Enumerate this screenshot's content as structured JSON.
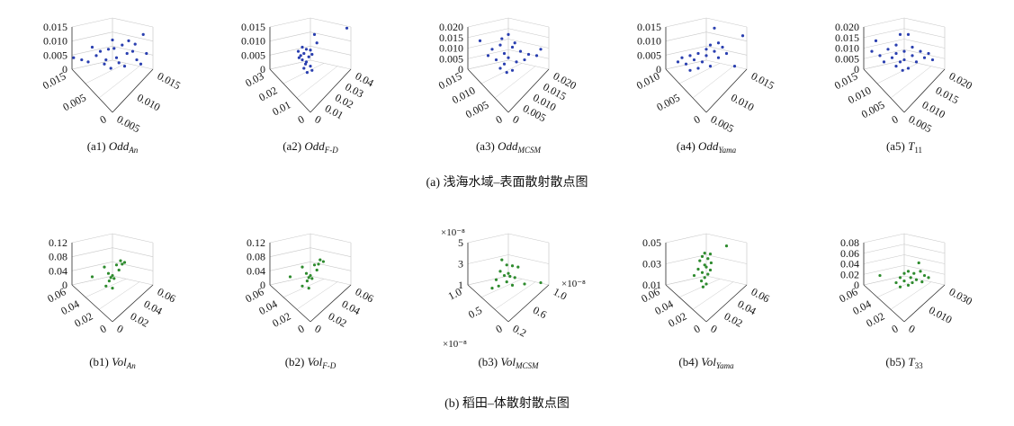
{
  "groups": [
    {
      "caption": "(a) 浅海水域–表面散射散点图",
      "color": "#2a3fb0",
      "panels": [
        {
          "prefix": "(a1) ",
          "base": "Odd",
          "sub": "An",
          "z_ticks": [
            "0.015",
            "0.010",
            "0.005",
            "0"
          ],
          "left_ticks": [
            "0.015",
            "0.005",
            "0"
          ],
          "right_ticks": [
            "0.015",
            "0.010",
            "0.005"
          ],
          "points": [
            [
              0.5,
              0.82
            ],
            [
              0.88,
              0.95
            ],
            [
              0.62,
              0.7
            ],
            [
              0.45,
              0.6
            ],
            [
              0.75,
              0.55
            ],
            [
              0.3,
              0.45
            ],
            [
              0.55,
              0.4
            ],
            [
              0.8,
              0.35
            ],
            [
              0.4,
              0.25
            ],
            [
              0.65,
              0.2
            ],
            [
              0.2,
              0.3
            ],
            [
              0.92,
              0.5
            ],
            [
              0.12,
              0.35
            ],
            [
              0.7,
              0.8
            ],
            [
              0.35,
              0.55
            ],
            [
              0.58,
              0.28
            ],
            [
              0.48,
              0.15
            ],
            [
              0.85,
              0.25
            ],
            [
              0.25,
              0.65
            ],
            [
              0.68,
              0.5
            ],
            [
              0.02,
              0.4
            ],
            [
              0.52,
              0.62
            ],
            [
              0.42,
              0.35
            ],
            [
              0.78,
              0.72
            ]
          ]
        },
        {
          "prefix": "(a2) ",
          "base": "Odd",
          "sub": "F-D",
          "z_ticks": [
            "0.015",
            "0.010",
            "0.005",
            "0"
          ],
          "left_ticks": [
            "0.03",
            "0.02",
            "0.01",
            "0"
          ],
          "right_ticks": [
            "0.04",
            "0.03",
            "0.02",
            "0.01",
            "0"
          ],
          "points": [
            [
              0.55,
              0.95
            ],
            [
              0.4,
              0.65
            ],
            [
              0.45,
              0.6
            ],
            [
              0.5,
              0.58
            ],
            [
              0.35,
              0.55
            ],
            [
              0.42,
              0.5
            ],
            [
              0.52,
              0.48
            ],
            [
              0.38,
              0.45
            ],
            [
              0.48,
              0.42
            ],
            [
              0.4,
              0.35
            ],
            [
              0.45,
              0.3
            ],
            [
              0.5,
              0.2
            ],
            [
              0.42,
              0.15
            ],
            [
              0.52,
              0.1
            ],
            [
              0.46,
              0.05
            ],
            [
              0.95,
              1.1
            ],
            [
              0.58,
              0.75
            ],
            [
              0.36,
              0.4
            ],
            [
              0.44,
              0.25
            ]
          ]
        },
        {
          "prefix": "(a3) ",
          "base": "Odd",
          "sub": "MCSM",
          "z_ticks": [
            "0.020",
            "0.015",
            "0.010",
            "0.005",
            "0"
          ],
          "left_ticks": [
            "0.015",
            "0.010",
            "0.005",
            "0"
          ],
          "right_ticks": [
            "0.020",
            "0.015",
            "0.010",
            "0.005",
            "0"
          ],
          "points": [
            [
              0.5,
              0.95
            ],
            [
              0.15,
              0.8
            ],
            [
              0.4,
              0.7
            ],
            [
              0.55,
              0.65
            ],
            [
              0.3,
              0.6
            ],
            [
              0.65,
              0.55
            ],
            [
              0.45,
              0.5
            ],
            [
              0.75,
              0.48
            ],
            [
              0.85,
              0.45
            ],
            [
              0.5,
              0.4
            ],
            [
              0.35,
              0.35
            ],
            [
              0.6,
              0.3
            ],
            [
              0.45,
              0.25
            ],
            [
              0.4,
              0.15
            ],
            [
              0.55,
              0.1
            ],
            [
              0.48,
              0.05
            ],
            [
              0.7,
              0.35
            ],
            [
              0.25,
              0.45
            ],
            [
              0.9,
              0.6
            ],
            [
              0.58,
              0.75
            ],
            [
              0.42,
              0.85
            ]
          ]
        },
        {
          "prefix": "(a4) ",
          "base": "Odd",
          "sub": "Yama",
          "z_ticks": [
            "0.015",
            "0.010",
            "0.005",
            "0"
          ],
          "left_ticks": [
            "0.010",
            "0.005",
            "0"
          ],
          "right_ticks": [
            "0.015",
            "0.010",
            "0.005"
          ],
          "points": [
            [
              0.6,
              1.1
            ],
            [
              0.95,
              0.92
            ],
            [
              0.65,
              0.75
            ],
            [
              0.55,
              0.7
            ],
            [
              0.7,
              0.65
            ],
            [
              0.6,
              0.55
            ],
            [
              0.4,
              0.5
            ],
            [
              0.3,
              0.45
            ],
            [
              0.5,
              0.45
            ],
            [
              0.2,
              0.4
            ],
            [
              0.35,
              0.35
            ],
            [
              0.45,
              0.3
            ],
            [
              0.25,
              0.25
            ],
            [
              0.55,
              0.2
            ],
            [
              0.4,
              0.15
            ],
            [
              0.85,
              0.2
            ],
            [
              0.65,
              0.4
            ],
            [
              0.15,
              0.3
            ],
            [
              0.75,
              0.5
            ],
            [
              0.3,
              0.1
            ],
            [
              0.5,
              0.6
            ]
          ]
        },
        {
          "prefix": "(a5) ",
          "base": "T",
          "sub": "11",
          "plain": true,
          "z_ticks": [
            "0.020",
            "0.015",
            "0.010",
            "0.005",
            "0"
          ],
          "left_ticks": [
            "0.015",
            "0.010",
            "0.005",
            "0"
          ],
          "right_ticks": [
            "0.020",
            "0.015",
            "0.010",
            "0.005"
          ],
          "points": [
            [
              0.45,
              0.95
            ],
            [
              0.55,
              0.95
            ],
            [
              0.15,
              0.8
            ],
            [
              0.4,
              0.7
            ],
            [
              0.6,
              0.65
            ],
            [
              0.3,
              0.6
            ],
            [
              0.7,
              0.55
            ],
            [
              0.5,
              0.55
            ],
            [
              0.4,
              0.5
            ],
            [
              0.8,
              0.5
            ],
            [
              0.2,
              0.45
            ],
            [
              0.6,
              0.45
            ],
            [
              0.35,
              0.4
            ],
            [
              0.5,
              0.35
            ],
            [
              0.45,
              0.3
            ],
            [
              0.25,
              0.3
            ],
            [
              0.65,
              0.3
            ],
            [
              0.4,
              0.2
            ],
            [
              0.55,
              0.15
            ],
            [
              0.75,
              0.4
            ],
            [
              0.1,
              0.55
            ],
            [
              0.85,
              0.35
            ],
            [
              0.48,
              0.1
            ]
          ]
        }
      ]
    },
    {
      "caption": "(b) 稻田–体散射散点图",
      "color": "#2e8b2e",
      "panels": [
        {
          "prefix": "(b1) ",
          "base": "Vol",
          "sub": "An",
          "z_ticks": [
            "0.12",
            "0.08",
            "0.04",
            "0"
          ],
          "left_ticks": [
            "0.06",
            "0.04",
            "0.02",
            "0"
          ],
          "right_ticks": [
            "0.06",
            "0.04",
            "0.02",
            "0"
          ],
          "points": [
            [
              0.6,
              0.7
            ],
            [
              0.65,
              0.66
            ],
            [
              0.62,
              0.62
            ],
            [
              0.55,
              0.6
            ],
            [
              0.4,
              0.55
            ],
            [
              0.58,
              0.48
            ],
            [
              0.45,
              0.4
            ],
            [
              0.5,
              0.35
            ],
            [
              0.48,
              0.3
            ],
            [
              0.52,
              0.28
            ],
            [
              0.25,
              0.32
            ],
            [
              0.46,
              0.22
            ],
            [
              0.42,
              0.1
            ],
            [
              0.5,
              0.05
            ]
          ]
        },
        {
          "prefix": "(b2) ",
          "base": "Vol",
          "sub": "F-D",
          "z_ticks": [
            "0.12",
            "0.08",
            "0.04",
            "0"
          ],
          "left_ticks": [
            "0.06",
            "0.04",
            "0.02",
            "0"
          ],
          "right_ticks": [
            "0.06",
            "0.04",
            "0.02",
            "0"
          ],
          "points": [
            [
              0.62,
              0.72
            ],
            [
              0.66,
              0.68
            ],
            [
              0.6,
              0.62
            ],
            [
              0.55,
              0.6
            ],
            [
              0.4,
              0.55
            ],
            [
              0.58,
              0.48
            ],
            [
              0.45,
              0.4
            ],
            [
              0.5,
              0.35
            ],
            [
              0.48,
              0.3
            ],
            [
              0.52,
              0.28
            ],
            [
              0.25,
              0.32
            ],
            [
              0.46,
              0.22
            ],
            [
              0.4,
              0.1
            ],
            [
              0.48,
              0.05
            ]
          ]
        },
        {
          "prefix": "(b3) ",
          "base": "Vol",
          "sub": "MCSM",
          "z_label": "×10⁻⁸",
          "left_label": "×10⁻⁸",
          "right_label": "×10⁻⁸",
          "z_ticks": [
            "5",
            "3",
            "1"
          ],
          "left_ticks": [
            "1.0",
            "0.5",
            "0"
          ],
          "right_ticks": [
            "1.0",
            "0.6",
            "0.2"
          ],
          "points": [
            [
              0.42,
              0.72
            ],
            [
              0.48,
              0.6
            ],
            [
              0.55,
              0.58
            ],
            [
              0.62,
              0.55
            ],
            [
              0.4,
              0.45
            ],
            [
              0.5,
              0.4
            ],
            [
              0.45,
              0.35
            ],
            [
              0.52,
              0.33
            ],
            [
              0.58,
              0.3
            ],
            [
              0.35,
              0.25
            ],
            [
              0.48,
              0.2
            ],
            [
              0.38,
              0.1
            ],
            [
              0.55,
              0.12
            ],
            [
              0.7,
              0.15
            ],
            [
              0.9,
              0.18
            ],
            [
              0.3,
              0.05
            ]
          ]
        },
        {
          "prefix": "(b4) ",
          "base": "Vol",
          "sub": "Yama",
          "z_ticks": [
            "0.05",
            "0.03",
            "0.01"
          ],
          "left_ticks": [
            "0.06",
            "0.04",
            "0.02",
            "0"
          ],
          "right_ticks": [
            "0.06",
            "0.04",
            "0.02",
            "0"
          ],
          "points": [
            [
              0.75,
              1.05
            ],
            [
              0.48,
              0.88
            ],
            [
              0.55,
              0.86
            ],
            [
              0.45,
              0.8
            ],
            [
              0.52,
              0.75
            ],
            [
              0.42,
              0.7
            ],
            [
              0.56,
              0.65
            ],
            [
              0.48,
              0.6
            ],
            [
              0.5,
              0.55
            ],
            [
              0.4,
              0.5
            ],
            [
              0.55,
              0.48
            ],
            [
              0.45,
              0.42
            ],
            [
              0.52,
              0.38
            ],
            [
              0.35,
              0.35
            ],
            [
              0.48,
              0.3
            ],
            [
              0.44,
              0.22
            ],
            [
              0.5,
              0.15
            ],
            [
              0.46,
              0.08
            ]
          ]
        },
        {
          "prefix": "(b5) ",
          "base": "T",
          "sub": "33",
          "plain": true,
          "z_ticks": [
            "0.08",
            "0.06",
            "0.04",
            "0.02",
            "0"
          ],
          "left_ticks": [
            "0.06",
            "0.04",
            "0.02",
            "0"
          ],
          "right_ticks": [
            "0.030",
            "0.010",
            "0"
          ],
          "points": [
            [
              0.68,
              0.65
            ],
            [
              0.55,
              0.45
            ],
            [
              0.7,
              0.45
            ],
            [
              0.5,
              0.4
            ],
            [
              0.62,
              0.4
            ],
            [
              0.75,
              0.35
            ],
            [
              0.8,
              0.3
            ],
            [
              0.45,
              0.3
            ],
            [
              0.58,
              0.3
            ],
            [
              0.2,
              0.35
            ],
            [
              0.65,
              0.25
            ],
            [
              0.5,
              0.22
            ],
            [
              0.4,
              0.18
            ],
            [
              0.6,
              0.18
            ],
            [
              0.55,
              0.12
            ],
            [
              0.45,
              0.08
            ],
            [
              0.72,
              0.2
            ]
          ]
        }
      ]
    }
  ]
}
